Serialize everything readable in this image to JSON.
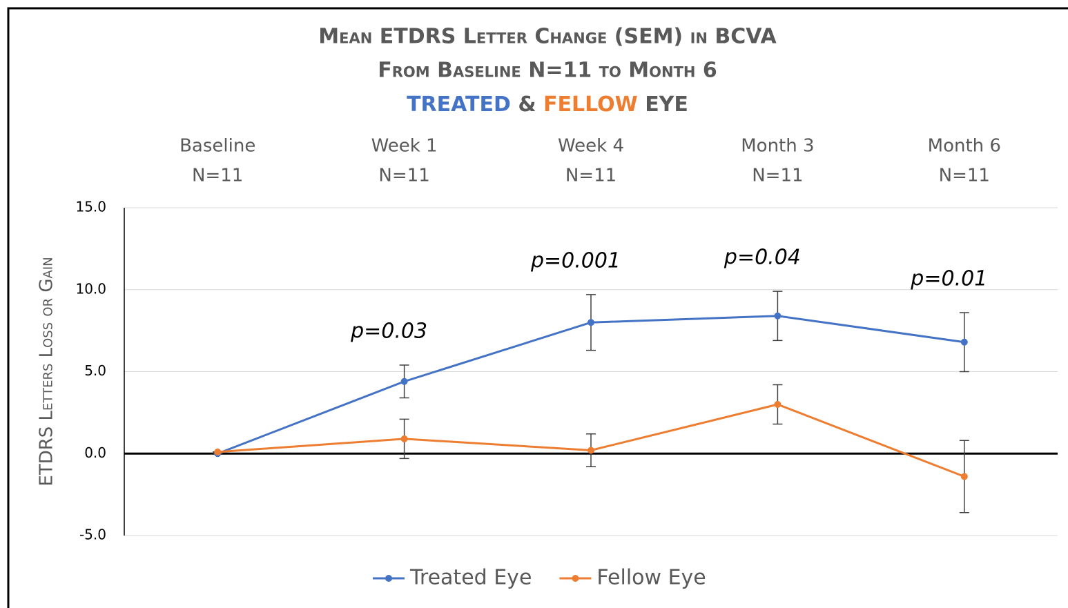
{
  "chart_data": {
    "type": "line",
    "title": [
      "Mean ETDRS Letter Change (SEM) in BCVA",
      "From Baseline N=11 to Month 6"
    ],
    "subtitle": [
      "TREATED",
      "&",
      "FELLOW",
      "EYE"
    ],
    "categories": [
      "Baseline",
      "Week 1",
      "Week 4",
      "Month 3",
      "Month 6"
    ],
    "category_counts": [
      "N=11",
      "N=11",
      "N=11",
      "N=11",
      "N=11"
    ],
    "y_label": "ETDRS Letters Loss or Gain",
    "ylim": [
      -5,
      15
    ],
    "yticks": [
      {
        "value": -5,
        "label": "-5.0"
      },
      {
        "value": 0,
        "label": "0.0"
      },
      {
        "value": 5,
        "label": "5.0"
      },
      {
        "value": 10,
        "label": "10.0"
      },
      {
        "value": 15,
        "label": "15.0"
      }
    ],
    "grid": true,
    "legend": "bottom",
    "series": [
      {
        "name": "Treated Eye",
        "color": "#4472c4",
        "values": [
          0,
          4.4,
          8.0,
          8.4,
          6.8
        ],
        "errors": [
          0,
          1.0,
          1.7,
          1.5,
          1.8
        ]
      },
      {
        "name": "Fellow Eye",
        "color": "#ed7d31",
        "values": [
          0.1,
          0.9,
          0.2,
          3.0,
          -1.4
        ],
        "errors": [
          0,
          1.2,
          1.0,
          1.2,
          2.2
        ]
      }
    ],
    "annotations": [
      {
        "category": "Week 1",
        "text": "p=0.03"
      },
      {
        "category": "Week 4",
        "text": "p=0.001"
      },
      {
        "category": "Month 3",
        "text": "p=0.04"
      },
      {
        "category": "Month 6",
        "text": "p=0.01"
      }
    ]
  }
}
